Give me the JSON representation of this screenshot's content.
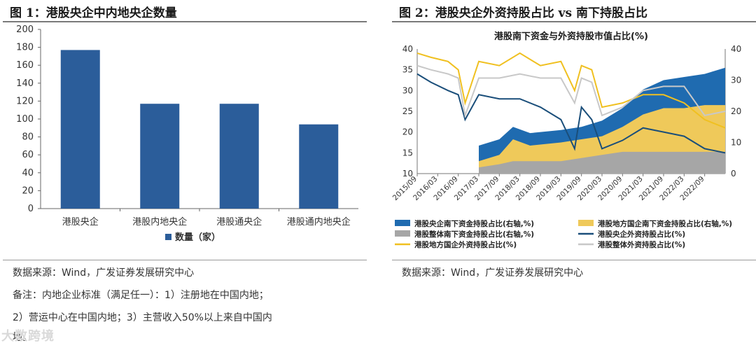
{
  "left_figure": {
    "title": "图 1：港股央企中内地央企数量",
    "source": "数据来源：Wind，广发证券发展研究中心",
    "note_line1": "备注：内地企业标准（满足任一）：1）注册地在中国内地；",
    "note_line2": "2）营运中心在中国内地；3）主营收入50%以上来自中国内",
    "note_line3": "地。"
  },
  "right_figure": {
    "title": "图 2：港股央企外资持股占比 vs 南下持股占比",
    "source": "数据来源：Wind，广发证券发展研究中心"
  },
  "watermark": "大数跨境",
  "colors": {
    "bar": "#2b5d9a",
    "south_central": "#1f6bb0",
    "south_local_soe": "#efc95a",
    "south_overall": "#a6a6a6",
    "foreign_central": "#1a4e7a",
    "foreign_local_soe": "#f0c020",
    "foreign_overall": "#c8c8c8"
  },
  "chart_data": [
    {
      "type": "bar",
      "title": "",
      "categories": [
        "港股央企",
        "港股内地央企",
        "港股通央企",
        "港股通内地央企"
      ],
      "series": [
        {
          "name": "数量（家）",
          "values": [
            177,
            117,
            117,
            94
          ]
        }
      ],
      "ylim": [
        0,
        200
      ],
      "yticks": [
        0,
        20,
        40,
        60,
        80,
        100,
        120,
        140,
        160,
        180,
        200
      ],
      "grid": false,
      "legend": "bottom"
    },
    {
      "type": "area",
      "title": "港股南下资金与外资持股市值占比(%)",
      "x_ticks": [
        "2015/09",
        "2016/03",
        "2016/09",
        "2017/03",
        "2017/09",
        "2018/03",
        "2018/09",
        "2019/03",
        "2019/09",
        "2020/03",
        "2020/09",
        "2021/03",
        "2021/09",
        "2022/03",
        "2022/09"
      ],
      "x_range": [
        "2015/09",
        "2023/03"
      ],
      "left_axis": {
        "ylim": [
          10,
          40
        ],
        "ticks": [
          10,
          15,
          20,
          25,
          30,
          35,
          40
        ]
      },
      "right_axis": {
        "ylim": [
          0,
          40
        ],
        "ticks": [
          0,
          10,
          20,
          30,
          40
        ]
      },
      "legend": "bottom",
      "series": [
        {
          "name": "港股央企南下资金持股占比(右轴,%)",
          "axis": "right",
          "style": "area",
          "x": [
            "2017/03",
            "2017/09",
            "2018/01",
            "2018/06",
            "2019/03",
            "2019/09",
            "2020/03",
            "2020/09",
            "2021/03",
            "2021/09",
            "2022/03",
            "2022/09",
            "2023/03"
          ],
          "values": [
            9,
            11,
            15,
            13,
            14,
            15,
            17,
            21,
            27,
            30,
            31,
            32,
            34
          ]
        },
        {
          "name": "港股地方国企南下资金持股占比(右轴,%)",
          "axis": "right",
          "style": "area",
          "x": [
            "2017/03",
            "2017/09",
            "2018/01",
            "2018/06",
            "2019/03",
            "2019/09",
            "2020/03",
            "2020/09",
            "2021/03",
            "2021/09",
            "2022/03",
            "2022/09",
            "2023/03"
          ],
          "values": [
            4,
            6,
            11,
            9,
            10,
            11,
            12,
            15,
            19,
            21,
            21,
            22,
            22
          ]
        },
        {
          "name": "港股整体南下资金持股占比(右轴,%)",
          "axis": "right",
          "style": "area",
          "x": [
            "2017/03",
            "2017/09",
            "2018/01",
            "2018/06",
            "2019/03",
            "2019/09",
            "2020/03",
            "2020/09",
            "2021/03",
            "2021/09",
            "2022/03",
            "2022/09",
            "2023/03"
          ],
          "values": [
            2,
            3,
            4,
            4,
            4,
            5,
            6,
            7,
            7,
            7,
            7,
            7,
            7
          ]
        },
        {
          "name": "港股央企外资持股占比(%)",
          "axis": "left",
          "style": "line",
          "x": [
            "2015/09",
            "2016/01",
            "2016/06",
            "2016/09",
            "2016/11",
            "2017/03",
            "2017/09",
            "2018/03",
            "2018/09",
            "2019/03",
            "2019/07",
            "2019/09",
            "2019/12",
            "2020/03",
            "2020/09",
            "2021/03",
            "2021/09",
            "2022/03",
            "2022/09",
            "2023/03"
          ],
          "values": [
            34,
            32,
            30,
            29,
            23,
            29,
            28,
            28,
            26,
            23,
            16,
            26,
            23,
            16,
            18,
            21,
            20,
            19,
            16,
            15
          ]
        },
        {
          "name": "港股地方国企外资持股占比(%)",
          "axis": "left",
          "style": "line",
          "x": [
            "2015/09",
            "2016/01",
            "2016/06",
            "2016/09",
            "2016/11",
            "2017/03",
            "2017/09",
            "2018/03",
            "2018/09",
            "2019/03",
            "2019/07",
            "2019/09",
            "2019/12",
            "2020/03",
            "2020/09",
            "2021/03",
            "2021/09",
            "2022/03",
            "2022/09",
            "2023/03"
          ],
          "values": [
            39,
            38,
            37,
            35,
            27,
            37,
            36,
            39,
            36,
            37,
            30,
            36,
            35,
            26,
            27,
            29,
            29,
            27,
            23,
            21
          ]
        },
        {
          "name": "港股整体外资持股占比(%)",
          "axis": "left",
          "style": "line",
          "x": [
            "2015/09",
            "2016/01",
            "2016/06",
            "2016/09",
            "2016/11",
            "2017/03",
            "2017/09",
            "2018/03",
            "2018/09",
            "2019/03",
            "2019/07",
            "2019/09",
            "2019/12",
            "2020/03",
            "2020/09",
            "2021/03",
            "2021/09",
            "2022/03",
            "2022/09",
            "2023/03"
          ],
          "values": [
            36,
            35,
            34,
            33,
            24,
            33,
            33,
            34,
            33,
            33,
            27,
            33,
            32,
            24,
            26,
            30,
            31,
            31,
            24,
            25
          ]
        }
      ]
    }
  ]
}
